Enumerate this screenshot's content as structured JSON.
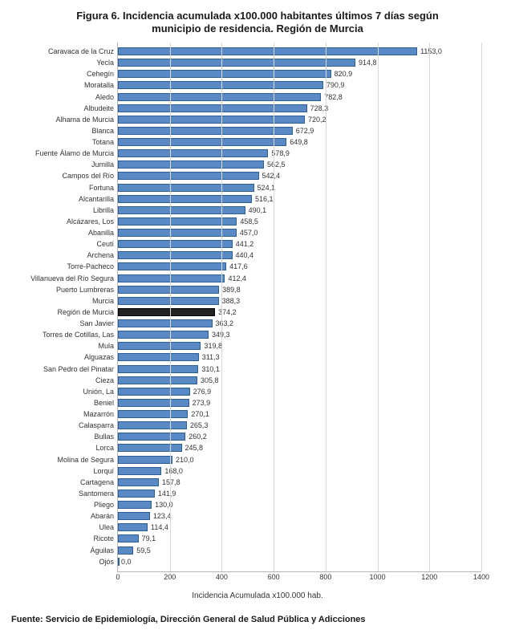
{
  "title_line1": "Figura 6. Incidencia acumulada x100.000 habitantes últimos 7 días según",
  "title_line2": "municipio de residencia. Región de Murcia",
  "x_axis_label": "Incidencia Acumulada x100.000 hab.",
  "source": "Fuente: Servicio de Epidemiología, Dirección General de Salud Pública y Adicciones",
  "chart": {
    "type": "bar-horizontal",
    "xlim": [
      0,
      1400
    ],
    "xtick_step": 200,
    "xticks": [
      0,
      200,
      400,
      600,
      800,
      1000,
      1200,
      1400
    ],
    "bar_fill": "#5a8ac6",
    "bar_border": "#2e5d91",
    "highlight_fill": "#222222",
    "highlight_border": "#000000",
    "grid_color": "#d9d9d9",
    "axis_color": "#b6b6b6",
    "background_color": "#ffffff",
    "title_fontsize": 13,
    "label_fontsize": 9,
    "value_fontsize": 9,
    "tick_fontsize": 9,
    "axis_title_fontsize": 10,
    "source_fontsize": 11,
    "decimal_sep": ",",
    "data": [
      {
        "label": "Caravaca de la Cruz",
        "value": 1153.0
      },
      {
        "label": "Yecla",
        "value": 914.8
      },
      {
        "label": "Cehegín",
        "value": 820.9
      },
      {
        "label": "Moratalla",
        "value": 790.9
      },
      {
        "label": "Aledo",
        "value": 782.8
      },
      {
        "label": "Albudeite",
        "value": 728.3
      },
      {
        "label": "Alhama de Murcia",
        "value": 720.2
      },
      {
        "label": "Blanca",
        "value": 672.9
      },
      {
        "label": "Totana",
        "value": 649.8
      },
      {
        "label": "Fuente Álamo de Murcia",
        "value": 578.9
      },
      {
        "label": "Jumilla",
        "value": 562.5
      },
      {
        "label": "Campos del Río",
        "value": 542.4
      },
      {
        "label": "Fortuna",
        "value": 524.1
      },
      {
        "label": "Alcantarilla",
        "value": 516.1
      },
      {
        "label": "Librilla",
        "value": 490.1
      },
      {
        "label": "Alcázares, Los",
        "value": 458.5
      },
      {
        "label": "Abanilla",
        "value": 457.0
      },
      {
        "label": "Ceutí",
        "value": 441.2
      },
      {
        "label": "Archena",
        "value": 440.4
      },
      {
        "label": "Torre-Pacheco",
        "value": 417.6
      },
      {
        "label": "Villanueva del Río Segura",
        "value": 412.4
      },
      {
        "label": "Puerto Lumbreras",
        "value": 389.8
      },
      {
        "label": "Murcia",
        "value": 388.3
      },
      {
        "label": "Región de Murcia",
        "value": 374.2,
        "highlight": true
      },
      {
        "label": "San Javier",
        "value": 363.2
      },
      {
        "label": "Torres de Cotillas, Las",
        "value": 349.3
      },
      {
        "label": "Mula",
        "value": 319.8
      },
      {
        "label": "Alguazas",
        "value": 311.3
      },
      {
        "label": "San Pedro del Pinatar",
        "value": 310.1
      },
      {
        "label": "Cieza",
        "value": 305.8
      },
      {
        "label": "Unión, La",
        "value": 276.9
      },
      {
        "label": "Beniel",
        "value": 273.9
      },
      {
        "label": "Mazarrón",
        "value": 270.1
      },
      {
        "label": "Calasparra",
        "value": 265.3
      },
      {
        "label": "Bullas",
        "value": 260.2
      },
      {
        "label": "Lorca",
        "value": 245.8
      },
      {
        "label": "Molina de Segura",
        "value": 210.0
      },
      {
        "label": "Lorquí",
        "value": 168.0
      },
      {
        "label": "Cartagena",
        "value": 157.8
      },
      {
        "label": "Santomera",
        "value": 141.9
      },
      {
        "label": "Pliego",
        "value": 130.0
      },
      {
        "label": "Abarán",
        "value": 123.4
      },
      {
        "label": "Ulea",
        "value": 114.4
      },
      {
        "label": "Ricote",
        "value": 79.1
      },
      {
        "label": "Águilas",
        "value": 59.5
      },
      {
        "label": "Ojós",
        "value": 0.0
      }
    ]
  }
}
